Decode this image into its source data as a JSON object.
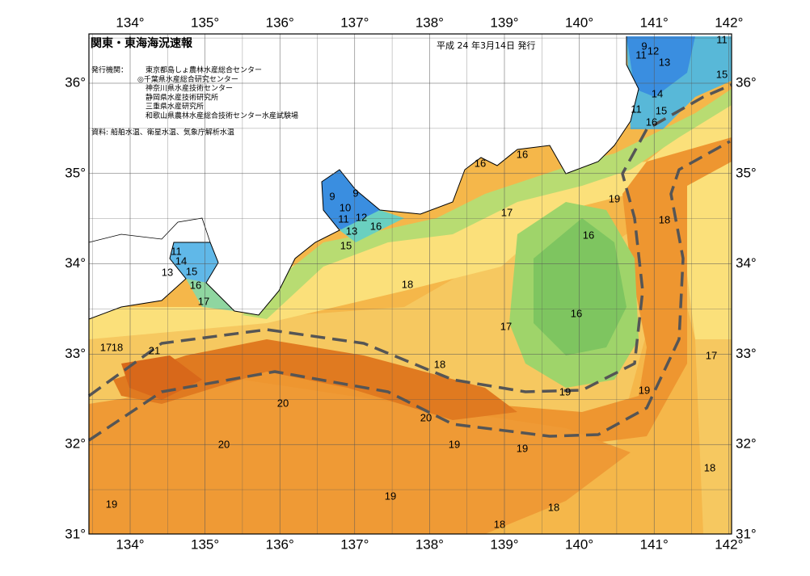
{
  "header": {
    "title": "関東・東海海況速報",
    "date": "平成 24 年3月14日 発行",
    "issuer_label": "発行機関：",
    "issuers": [
      "東京都島しょ農林水産総合センター",
      "◎千葉県水産総合研究センター",
      "神奈川県水産技術センター",
      "静岡県水産技術研究所",
      "三重県水産研究所",
      "和歌山県農林水産総合技術センター水産試験場"
    ],
    "source": "資料: 船舶水温、衛星水温、気象庁解析水温"
  },
  "axes": {
    "lon_labels": [
      "134°",
      "135°",
      "136°",
      "137°",
      "138°",
      "139°",
      "140°",
      "141°",
      "142°"
    ],
    "lat_labels": [
      "36°",
      "35°",
      "34°",
      "33°",
      "32°",
      "31°"
    ]
  },
  "contour_labels": [
    "11",
    "9",
    "12",
    "11",
    "13",
    "15",
    "14",
    "11",
    "15",
    "16",
    "16",
    "16",
    "19",
    "17",
    "18",
    "16",
    "9",
    "9",
    "10",
    "12",
    "11",
    "13",
    "16",
    "15",
    "11",
    "14",
    "13",
    "15",
    "16",
    "17",
    "18",
    "16",
    "17",
    "17",
    "18",
    "21",
    "17",
    "18",
    "19",
    "19",
    "20",
    "20",
    "19",
    "19",
    "20",
    "18",
    "19",
    "19",
    "18",
    "18"
  ]
}
